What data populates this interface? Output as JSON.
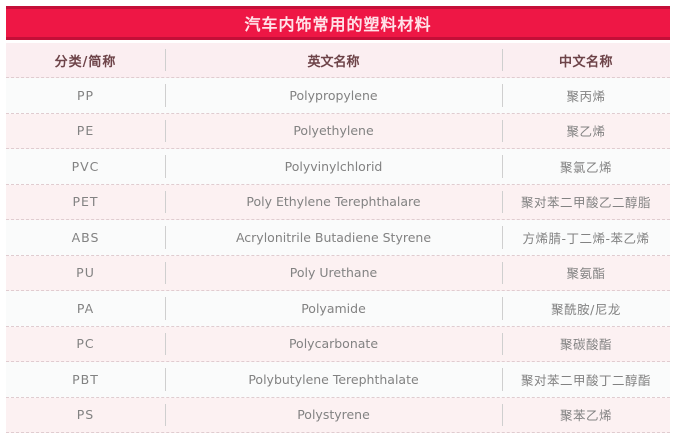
{
  "title": "汽车内饰常用的塑料材料",
  "table": {
    "columns": [
      {
        "key": "abbr",
        "label": "分类/简称"
      },
      {
        "key": "en",
        "label": "英文名称"
      },
      {
        "key": "zh",
        "label": "中文名称"
      }
    ],
    "rows": [
      {
        "abbr": "PP",
        "en": "Polypropylene",
        "zh": "聚丙烯"
      },
      {
        "abbr": "PE",
        "en": "Polyethylene",
        "zh": "聚乙烯"
      },
      {
        "abbr": "PVC",
        "en": "Polyvinylchlorid",
        "zh": "聚氯乙烯"
      },
      {
        "abbr": "PET",
        "en": "Poly Ethylene Terephthalare",
        "zh": "聚对苯二甲酸乙二醇脂"
      },
      {
        "abbr": "ABS",
        "en": "Acrylonitrile Butadiene Styrene",
        "zh": "方烯腈-丁二烯-苯乙烯"
      },
      {
        "abbr": "PU",
        "en": "Poly Urethane",
        "zh": "聚氨酯"
      },
      {
        "abbr": "PA",
        "en": "Polyamide",
        "zh": "聚酰胺/尼龙"
      },
      {
        "abbr": "PC",
        "en": "Polycarbonate",
        "zh": "聚碳酸酯"
      },
      {
        "abbr": "PBT",
        "en": "Polybutylene Terephthalate",
        "zh": "聚对苯二甲酸丁二醇酯"
      },
      {
        "abbr": "PS",
        "en": "Polystyrene",
        "zh": "聚苯乙烯"
      }
    ]
  },
  "colors": {
    "banner_bg": "#ee1745",
    "banner_border": "#c40f38",
    "banner_text": "#ffe2e8",
    "header_bg": "#fbeef1",
    "header_text": "#6d4348",
    "row_light_bg": "#fafbfb",
    "row_pink_bg": "#fcf1f2",
    "body_text": "#828282",
    "dash_line": "#e0ccd0",
    "column_divider": "#cfcfcf"
  }
}
